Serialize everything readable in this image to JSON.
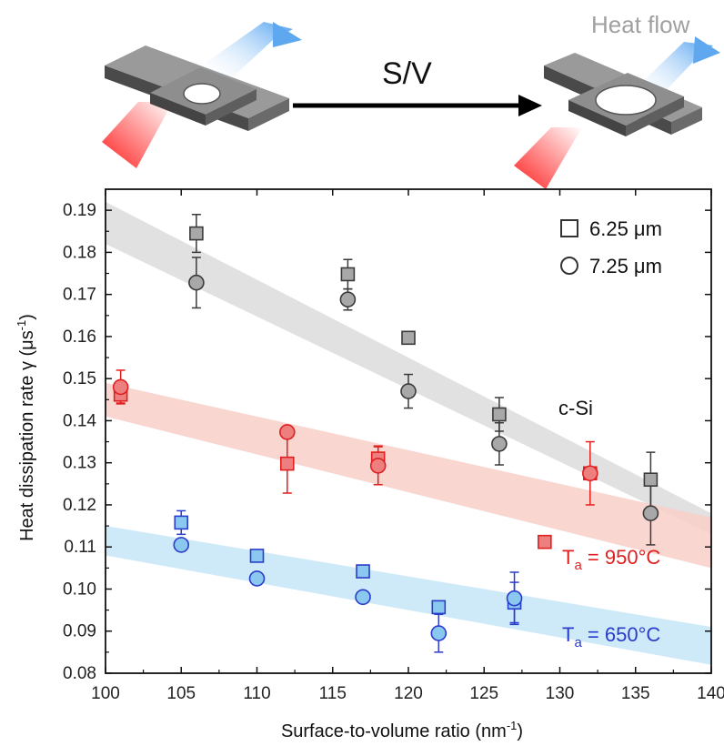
{
  "header": {
    "arrow_label": "S/V",
    "heat_flow_label": "Heat flow"
  },
  "chart_data": {
    "type": "scatter",
    "xlabel": "Surface-to-volume ratio (nm",
    "xlabel_sup": "-1",
    "xlabel_end": ")",
    "ylabel": "Heat dissipation rate γ (μs",
    "ylabel_sup": "-1",
    "ylabel_end": ")",
    "xlim": [
      100,
      140
    ],
    "ylim": [
      0.08,
      0.195
    ],
    "x_ticks": [
      100,
      105,
      110,
      115,
      120,
      125,
      130,
      135,
      140
    ],
    "y_ticks": [
      0.08,
      0.09,
      0.1,
      0.11,
      0.12,
      0.13,
      0.14,
      0.15,
      0.16,
      0.17,
      0.18,
      0.19
    ],
    "legend": [
      {
        "marker": "square",
        "label": "6.25 μm"
      },
      {
        "marker": "circle",
        "label": "7.25 μm"
      }
    ],
    "legend_position": "top-right",
    "annotations": {
      "csi": "c-Si",
      "t950_main": "T",
      "t950_sub": "a",
      "t950_rest": " = 950°C",
      "t650_main": "T",
      "t650_sub": "a",
      "t650_rest": " = 650°C"
    },
    "colors": {
      "gray": "#a8a8a8",
      "gray_edge": "#3a3a3a",
      "red": "#ee7f7f",
      "red_edge": "#e02020",
      "blue": "#8ac8f0",
      "blue_edge": "#2a3ccc",
      "gray_band": "#dcdcdc",
      "red_band": "#f9cfc8",
      "blue_band": "#c6e6f8"
    },
    "bands": [
      {
        "name": "c-Si",
        "color_key": "gray_band",
        "upper": [
          [
            100,
            0.192
          ],
          [
            140,
            0.118
          ]
        ],
        "lower": [
          [
            100,
            0.182
          ],
          [
            140,
            0.113
          ]
        ]
      },
      {
        "name": "950",
        "color_key": "red_band",
        "upper": [
          [
            100,
            0.149
          ],
          [
            140,
            0.117
          ]
        ],
        "lower": [
          [
            100,
            0.141
          ],
          [
            140,
            0.105
          ]
        ]
      },
      {
        "name": "650",
        "color_key": "blue_band",
        "upper": [
          [
            100,
            0.115
          ],
          [
            140,
            0.091
          ]
        ],
        "lower": [
          [
            100,
            0.108
          ],
          [
            140,
            0.082
          ]
        ]
      }
    ],
    "series": [
      {
        "group": "c-Si",
        "marker": "square",
        "color_key": "gray",
        "edge_key": "gray_edge",
        "points": [
          [
            106,
            0.1845,
            0.0045
          ],
          [
            116,
            0.1748,
            0.0035
          ],
          [
            120,
            0.1597,
            0
          ],
          [
            126,
            0.1415,
            0.004
          ],
          [
            136,
            0.126,
            0.0065
          ]
        ]
      },
      {
        "group": "c-Si",
        "marker": "circle",
        "color_key": "gray",
        "edge_key": "gray_edge",
        "points": [
          [
            106,
            0.1728,
            0.006
          ],
          [
            116,
            0.1688,
            0.0025
          ],
          [
            120,
            0.147,
            0.004
          ],
          [
            126,
            0.1345,
            0.005
          ],
          [
            136,
            0.118,
            0.0075
          ]
        ]
      },
      {
        "group": "950",
        "marker": "square",
        "color_key": "red",
        "edge_key": "red_edge",
        "points": [
          [
            101,
            0.1462,
            0.002
          ],
          [
            112,
            0.1298,
            0.007
          ],
          [
            118,
            0.131,
            0.003
          ],
          [
            129,
            0.1112,
            0.0008
          ],
          [
            132,
            0.1275,
            0.0075
          ]
        ]
      },
      {
        "group": "950",
        "marker": "circle",
        "color_key": "red",
        "edge_key": "red_edge",
        "points": [
          [
            101,
            0.148,
            0.004
          ],
          [
            112,
            0.1373,
            0.001
          ],
          [
            118,
            0.1293,
            0.0045
          ],
          [
            132,
            0.1275,
            0.0015
          ]
        ]
      },
      {
        "group": "650",
        "marker": "square",
        "color_key": "blue",
        "edge_key": "blue_edge",
        "points": [
          [
            105,
            0.1158,
            0.0028
          ],
          [
            110,
            0.1079,
            0.0012
          ],
          [
            117,
            0.1042,
            0.0012
          ],
          [
            122,
            0.0957,
            0.0012
          ],
          [
            127,
            0.0968,
            0.0048
          ]
        ]
      },
      {
        "group": "650",
        "marker": "circle",
        "color_key": "blue",
        "edge_key": "blue_edge",
        "points": [
          [
            105,
            0.1105,
            0.0008
          ],
          [
            110,
            0.1025,
            0
          ],
          [
            117,
            0.0981,
            0.0012
          ],
          [
            122,
            0.0895,
            0.0045
          ],
          [
            127,
            0.0978,
            0.0062
          ]
        ]
      }
    ]
  }
}
